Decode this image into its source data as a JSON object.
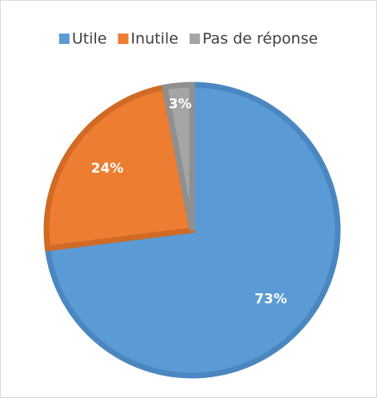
{
  "chart_data": {
    "type": "pie",
    "categories": [
      "Utile",
      "Inutile",
      "Pas de réponse"
    ],
    "values": [
      73,
      24,
      3
    ],
    "value_labels": [
      "73%",
      "24%",
      "3%"
    ],
    "colors": [
      "#5b9bd5",
      "#ed7d31",
      "#a5a5a5"
    ],
    "border_colors": [
      "#4a87c0",
      "#d06a25",
      "#8f8f8f"
    ],
    "legend": "top"
  }
}
